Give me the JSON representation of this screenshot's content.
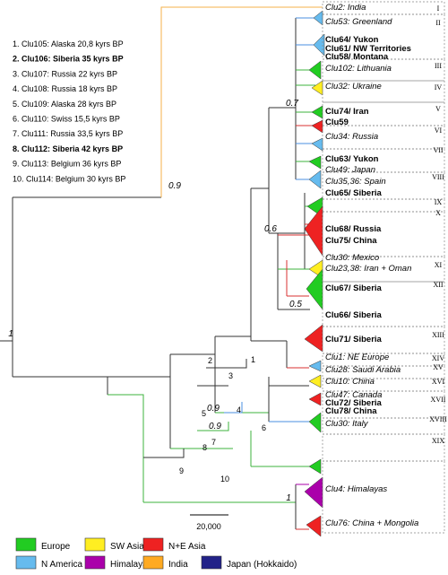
{
  "legend_list": [
    {
      "text": "1. Clu105: Alaska 20,8 kyrs BP",
      "bold": false
    },
    {
      "text": "2. Clu106: Siberia 35 kyrs BP",
      "bold": true
    },
    {
      "text": "3. Clu107: Russia 22 kyrs BP",
      "bold": false
    },
    {
      "text": "4. Clu108: Russia 18 kyrs BP",
      "bold": false
    },
    {
      "text": "5. Clu109: Alaska 28 kyrs BP",
      "bold": false
    },
    {
      "text": "6. Clu110: Swiss 15,5 kyrs BP",
      "bold": false
    },
    {
      "text": "7. Clu111: Russia 33,5 kyrs BP",
      "bold": false
    },
    {
      "text": "8. Clu112: Siberia 42 kyrs BP",
      "bold": true
    },
    {
      "text": "9. Clu113: Belgium 36 kyrs BP",
      "bold": false
    },
    {
      "text": "10. Clu114: Belgium 30 kyrs BP",
      "bold": false
    }
  ],
  "clades": [
    {
      "label": "Clu2: India",
      "bold": false,
      "italic": true
    },
    {
      "label": "Clu53: Greenland",
      "bold": false,
      "italic": true
    },
    {
      "label": "Clu64/ Yukon",
      "bold": true,
      "italic": false
    },
    {
      "label": "Clu61/ NW Territories",
      "bold": true,
      "italic": false
    },
    {
      "label": "Clu58/ Montana",
      "bold": true,
      "italic": false
    },
    {
      "label": "Clu102: Lithuania",
      "bold": false,
      "italic": true
    },
    {
      "label": "Clu32: Ukraine",
      "bold": false,
      "italic": true
    },
    {
      "label": "Clu74/ Iran",
      "bold": true,
      "italic": false
    },
    {
      "label": "Clu59",
      "bold": true,
      "italic": false
    },
    {
      "label": "Clu34: Russia",
      "bold": false,
      "italic": true
    },
    {
      "label": "Clu63/ Yukon",
      "bold": true,
      "italic": false
    },
    {
      "label": "Clu49: Japan",
      "bold": false,
      "italic": true
    },
    {
      "label": "Clu35,36: Spain",
      "bold": false,
      "italic": true
    },
    {
      "label": "Clu65/ Siberia",
      "bold": true,
      "italic": false
    },
    {
      "label": "Clu68/ Russia",
      "bold": true,
      "italic": false
    },
    {
      "label": "Clu75/ China",
      "bold": true,
      "italic": false
    },
    {
      "label": "Clu30: Mexico",
      "bold": false,
      "italic": true
    },
    {
      "label": "Clu23,38: Iran + Oman",
      "bold": false,
      "italic": true
    },
    {
      "label": "Clu67/ Siberia",
      "bold": true,
      "italic": false
    },
    {
      "label": "Clu66/ Siberia",
      "bold": true,
      "italic": false
    },
    {
      "label": "Clu71/ Siberia",
      "bold": true,
      "italic": false
    },
    {
      "label": "Clu1: NE Europe",
      "bold": false,
      "italic": true
    },
    {
      "label": "Clu28: Saudi Arabia",
      "bold": false,
      "italic": true
    },
    {
      "label": "Clu10: China",
      "bold": false,
      "italic": true
    },
    {
      "label": "Clu47: Canada",
      "bold": false,
      "italic": true
    },
    {
      "label": "Clu72/ Siberia",
      "bold": true,
      "italic": false
    },
    {
      "label": "Clu78/ China",
      "bold": true,
      "italic": false
    },
    {
      "label": "Clu30: Italy",
      "bold": false,
      "italic": true
    },
    {
      "label": "Clu4: Himalayas",
      "bold": false,
      "italic": true
    },
    {
      "label": "Clu76: China + Mongolia",
      "bold": false,
      "italic": true
    }
  ],
  "roman_numerals": [
    "I",
    "II",
    "III",
    "IV",
    "V",
    "VI",
    "VII",
    "VIII",
    "IX",
    "X",
    "XI",
    "XII",
    "XIII",
    "XIV",
    "XV",
    "XVI",
    "XVII",
    "XVIII",
    "XIX"
  ],
  "support_values": [
    "1",
    "0.9",
    "0.6",
    "0.7",
    "0.5",
    "0.9",
    "0.9",
    "1"
  ],
  "sample_numbers": [
    "1",
    "2",
    "3",
    "4",
    "5",
    "6",
    "7",
    "8",
    "9",
    "10"
  ],
  "scale_bar": "20,000",
  "region_legend": [
    {
      "label": "Europe",
      "color": "#22cc22"
    },
    {
      "label": "SW Asia",
      "color": "#ffee22"
    },
    {
      "label": "N+E Asia",
      "color": "#ee2222"
    },
    {
      "label": "N America",
      "color": "#66bbee"
    },
    {
      "label": "Himalaya",
      "color": "#aa00aa"
    },
    {
      "label": "India",
      "color": "#ffaa22"
    },
    {
      "label": "Japan (Hokkaido)",
      "color": "#222288"
    }
  ],
  "branch_colors": {
    "black": "#333333",
    "india": "#f4b24a",
    "europe": "#3cb33c",
    "n_america": "#4a8fe0",
    "n_e_asia": "#d83030"
  }
}
